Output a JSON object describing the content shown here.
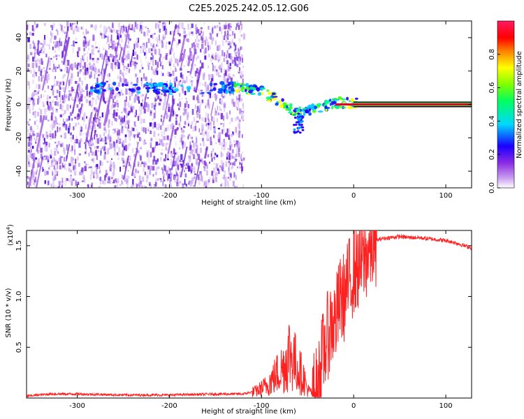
{
  "title": "C2E5.2025.242.05.12.G06",
  "chart_data": [
    {
      "type": "heatmap",
      "xlabel": "Height of straight line (km)",
      "ylabel": "Frequency (Hz)",
      "xlim": [
        -355,
        128
      ],
      "ylim": [
        -50,
        50
      ],
      "xticks": [
        -300,
        -200,
        -100,
        0,
        100
      ],
      "yticks": [
        -40,
        -20,
        0,
        20,
        40
      ],
      "colorbar": {
        "label": "Normalized spectral amplitude",
        "range": [
          0,
          1
        ],
        "ticks": [
          "0.0",
          "0.2",
          "0.4",
          "0.6",
          "0.8"
        ],
        "stops": [
          "#ffffff",
          "#8a2be2",
          "#0000ff",
          "#00d8ff",
          "#00ff00",
          "#ffff00",
          "#ff8000",
          "#ff0000",
          "#ff1493"
        ]
      },
      "features": [
        {
          "name": "noise",
          "x_range": [
            -355,
            -120
          ],
          "freq_range": [
            -50,
            50
          ]
        },
        {
          "name": "signal-track",
          "points": [
            [
              -285,
              10
            ],
            [
              -215,
              10
            ],
            [
              -200,
              9
            ],
            [
              -140,
              10
            ],
            [
              -120,
              10
            ],
            [
              -100,
              8
            ],
            [
              -85,
              3
            ],
            [
              -70,
              -3
            ],
            [
              -55,
              -5
            ],
            [
              -40,
              -2
            ],
            [
              -20,
              1
            ],
            [
              5,
              1
            ]
          ]
        },
        {
          "name": "carrier-line",
          "x_range": [
            0,
            128
          ],
          "freq": 0
        }
      ]
    },
    {
      "type": "line",
      "xlabel": "Height of straight line (km)",
      "ylabel": "SNR (10 * v/v)",
      "y_scale_label": "(x10",
      "y_scale_exp": "4",
      "xlim": [
        -355,
        128
      ],
      "ylim": [
        0,
        1.65
      ],
      "xticks": [
        -300,
        -200,
        -100,
        0,
        100
      ],
      "yticks": [
        "0.5",
        "1.0",
        "1.5"
      ],
      "line_color": "#ff2020",
      "series": [
        {
          "name": "SNR",
          "x": [
            -355,
            -330,
            -300,
            -250,
            -200,
            -150,
            -120,
            -105,
            -95,
            -85,
            -75,
            -70,
            -65,
            -60,
            -55,
            -50,
            -45,
            -40,
            -35,
            -30,
            -25,
            -20,
            -15,
            -10,
            -5,
            0,
            5,
            10,
            15,
            20,
            25,
            30,
            40,
            50,
            60,
            70,
            80,
            90,
            100,
            110,
            120,
            128
          ],
          "y": [
            0.02,
            0.04,
            0.04,
            0.03,
            0.03,
            0.04,
            0.04,
            0.07,
            0.12,
            0.22,
            0.32,
            0.45,
            0.38,
            0.28,
            0.22,
            0.08,
            0.05,
            0.06,
            0.35,
            0.55,
            0.72,
            0.75,
            0.95,
            1.0,
            1.15,
            1.25,
            1.3,
            1.35,
            1.42,
            1.5,
            1.55,
            1.57,
            1.58,
            1.59,
            1.58,
            1.58,
            1.57,
            1.56,
            1.55,
            1.53,
            1.5,
            1.48
          ]
        }
      ]
    }
  ]
}
